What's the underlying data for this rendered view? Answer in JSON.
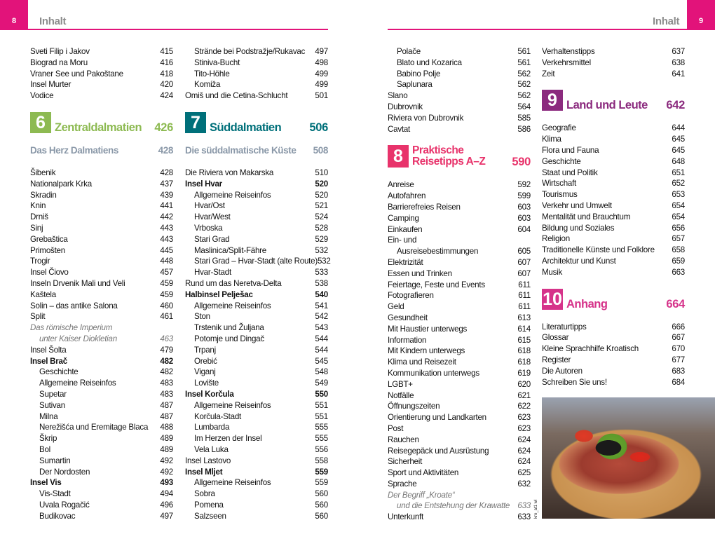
{
  "colors": {
    "brand": "#e2137a",
    "ch6": "#8dba52",
    "ch7": "#00707a",
    "ch8": "#e8336b",
    "ch9": "#8b2a7e",
    "ch10": "#d6338a"
  },
  "left_page": {
    "page_number": "8",
    "running_head": "Inhalt"
  },
  "right_page": {
    "page_number": "9",
    "running_head": "Inhalt"
  },
  "columns": [
    [
      {
        "t": "Sveti Filip i Jakov",
        "p": "415"
      },
      {
        "t": "Biograd na Moru",
        "p": "416"
      },
      {
        "t": "Vraner See und Pakoštane",
        "p": "418"
      },
      {
        "t": "Insel Murter",
        "p": "420"
      },
      {
        "t": "Vodice",
        "p": "424"
      },
      {
        "kind": "section",
        "num": "6",
        "title": "Zentraldalmatien",
        "p": "426",
        "color": "#8dba52"
      },
      {
        "kind": "sub",
        "t": "Das Herz Dalmatiens",
        "p": "428"
      },
      {
        "t": "Šibenik",
        "p": "428"
      },
      {
        "t": "Nationalpark Krka",
        "p": "437"
      },
      {
        "t": "Skradin",
        "p": "439"
      },
      {
        "t": "Knin",
        "p": "441"
      },
      {
        "t": "Drniš",
        "p": "442"
      },
      {
        "t": "Sinj",
        "p": "443"
      },
      {
        "t": "Grebaštica",
        "p": "443"
      },
      {
        "t": "Primošten",
        "p": "445"
      },
      {
        "t": "Trogir",
        "p": "448"
      },
      {
        "t": "Insel Čiovo",
        "p": "457"
      },
      {
        "t": "Inseln Drvenik Mali und Veli",
        "p": "459"
      },
      {
        "t": "Kaštela",
        "p": "459"
      },
      {
        "t": "Solin – das antike Salona",
        "p": "460"
      },
      {
        "t": "Split",
        "p": "461"
      },
      {
        "t": "Das römische Imperium",
        "p": "",
        "kind": "italic"
      },
      {
        "t": "unter Kaiser Diokletian",
        "p": "463",
        "kind": "italic indent"
      },
      {
        "t": "Insel Šolta",
        "p": "479"
      },
      {
        "t": "Insel Brač",
        "p": "482",
        "kind": "bold"
      },
      {
        "t": "Geschichte",
        "p": "482",
        "kind": "indent"
      },
      {
        "t": "Allgemeine Reiseinfos",
        "p": "483",
        "kind": "indent"
      },
      {
        "t": "Supetar",
        "p": "483",
        "kind": "indent"
      },
      {
        "t": "Sutivan",
        "p": "487",
        "kind": "indent"
      },
      {
        "t": "Milna",
        "p": "487",
        "kind": "indent"
      },
      {
        "t": "Nerežišća und Eremitage Blaca",
        "p": "488",
        "kind": "indent"
      },
      {
        "t": "Škrip",
        "p": "489",
        "kind": "indent"
      },
      {
        "t": "Bol",
        "p": "489",
        "kind": "indent"
      },
      {
        "t": "Sumartin",
        "p": "492",
        "kind": "indent"
      },
      {
        "t": "Der Nordosten",
        "p": "492",
        "kind": "indent"
      },
      {
        "t": "Insel Vis",
        "p": "493",
        "kind": "bold"
      },
      {
        "t": "Vis-Stadt",
        "p": "494",
        "kind": "indent"
      },
      {
        "t": "Uvala Rogačić",
        "p": "496",
        "kind": "indent"
      },
      {
        "t": "Budikovac",
        "p": "497",
        "kind": "indent"
      }
    ],
    [
      {
        "t": "Strände bei Podstražje/Rukavac",
        "p": "497",
        "kind": "indent"
      },
      {
        "t": "Stiniva-Bucht",
        "p": "498",
        "kind": "indent"
      },
      {
        "t": "Tito-Höhle",
        "p": "499",
        "kind": "indent"
      },
      {
        "t": "Komiža",
        "p": "499",
        "kind": "indent"
      },
      {
        "t": "Omiš und die Cetina-Schlucht",
        "p": "501"
      },
      {
        "kind": "section",
        "num": "7",
        "title": "Süddalmatien",
        "p": "506",
        "color": "#00707a"
      },
      {
        "kind": "sub",
        "t": "Die süddalmatische Küste",
        "p": "508"
      },
      {
        "t": "Die Riviera von Makarska",
        "p": "510"
      },
      {
        "t": "Insel Hvar",
        "p": "520",
        "kind": "bold"
      },
      {
        "t": "Allgemeine Reiseinfos",
        "p": "520",
        "kind": "indent"
      },
      {
        "t": "Hvar/Ost",
        "p": "521",
        "kind": "indent"
      },
      {
        "t": "Hvar/West",
        "p": "524",
        "kind": "indent"
      },
      {
        "t": "Vrboska",
        "p": "528",
        "kind": "indent"
      },
      {
        "t": "Stari Grad",
        "p": "529",
        "kind": "indent"
      },
      {
        "t": "Maslinica/Split-Fähre",
        "p": "532",
        "kind": "indent"
      },
      {
        "t": "Stari Grad – Hvar-Stadt (alte Route)",
        "p": "532",
        "kind": "indent"
      },
      {
        "t": "Hvar-Stadt",
        "p": "533",
        "kind": "indent"
      },
      {
        "t": "Rund um das Neretva-Delta",
        "p": "538"
      },
      {
        "t": "Halbinsel Pelješac",
        "p": "540",
        "kind": "bold"
      },
      {
        "t": "Allgemeine Reiseinfos",
        "p": "541",
        "kind": "indent"
      },
      {
        "t": "Ston",
        "p": "542",
        "kind": "indent"
      },
      {
        "t": "Trstenik und Žuljana",
        "p": "543",
        "kind": "indent"
      },
      {
        "t": "Potomje und Dingač",
        "p": "544",
        "kind": "indent"
      },
      {
        "t": "Trpanj",
        "p": "544",
        "kind": "indent"
      },
      {
        "t": "Orebić",
        "p": "545",
        "kind": "indent"
      },
      {
        "t": "Viganj",
        "p": "548",
        "kind": "indent"
      },
      {
        "t": "Lovište",
        "p": "549",
        "kind": "indent"
      },
      {
        "t": "Insel Korčula",
        "p": "550",
        "kind": "bold"
      },
      {
        "t": "Allgemeine Reiseinfos",
        "p": "551",
        "kind": "indent"
      },
      {
        "t": "Korčula-Stadt",
        "p": "551",
        "kind": "indent"
      },
      {
        "t": "Lumbarda",
        "p": "555",
        "kind": "indent"
      },
      {
        "t": "Im Herzen der Insel",
        "p": "555",
        "kind": "indent"
      },
      {
        "t": "Vela Luka",
        "p": "556",
        "kind": "indent"
      },
      {
        "t": "Insel Lastovo",
        "p": "558"
      },
      {
        "t": "Insel Mljet",
        "p": "559",
        "kind": "bold"
      },
      {
        "t": "Allgemeine Reiseinfos",
        "p": "559",
        "kind": "indent"
      },
      {
        "t": "Sobra",
        "p": "560",
        "kind": "indent"
      },
      {
        "t": "Pomena",
        "p": "560",
        "kind": "indent"
      },
      {
        "t": "Salzseen",
        "p": "560",
        "kind": "indent"
      }
    ],
    [
      {
        "t": "Polače",
        "p": "561",
        "kind": "indent"
      },
      {
        "t": "Blato und Kozarica",
        "p": "561",
        "kind": "indent"
      },
      {
        "t": "Babino Polje",
        "p": "562",
        "kind": "indent"
      },
      {
        "t": "Saplunara",
        "p": "562",
        "kind": "indent"
      },
      {
        "t": "Slano",
        "p": "562"
      },
      {
        "t": "Dubrovnik",
        "p": "564"
      },
      {
        "t": "Riviera von Dubrovnik",
        "p": "585"
      },
      {
        "t": "Cavtat",
        "p": "586"
      },
      {
        "kind": "section",
        "num": "8",
        "title": "Praktische",
        "title2": "Reisetipps A–Z",
        "p": "590",
        "color": "#e8336b"
      },
      {
        "t": "Anreise",
        "p": "592"
      },
      {
        "t": "Autofahren",
        "p": "599"
      },
      {
        "t": "Barrierefreies Reisen",
        "p": "603"
      },
      {
        "t": "Camping",
        "p": "603"
      },
      {
        "t": "Einkaufen",
        "p": "604"
      },
      {
        "t": "Ein- und",
        "p": ""
      },
      {
        "t": "Ausreisebestimmungen",
        "p": "605",
        "kind": "indent"
      },
      {
        "t": "Elektrizität",
        "p": "607"
      },
      {
        "t": "Essen und Trinken",
        "p": "607"
      },
      {
        "t": "Feiertage, Feste und Events",
        "p": "611"
      },
      {
        "t": "Fotografieren",
        "p": "611"
      },
      {
        "t": "Geld",
        "p": "611"
      },
      {
        "t": "Gesundheit",
        "p": "613"
      },
      {
        "t": "Mit Haustier unterwegs",
        "p": "614"
      },
      {
        "t": "Information",
        "p": "615"
      },
      {
        "t": "Mit Kindern unterwegs",
        "p": "618"
      },
      {
        "t": "Klima und Reisezeit",
        "p": "618"
      },
      {
        "t": "Kommunikation unterwegs",
        "p": "619"
      },
      {
        "t": "LGBT+",
        "p": "620"
      },
      {
        "t": "Notfälle",
        "p": "621"
      },
      {
        "t": "Öffnungszeiten",
        "p": "622"
      },
      {
        "t": "Orientierung und Landkarten",
        "p": "623"
      },
      {
        "t": "Post",
        "p": "623"
      },
      {
        "t": "Rauchen",
        "p": "624"
      },
      {
        "t": "Reisegepäck und Ausrüstung",
        "p": "624"
      },
      {
        "t": "Sicherheit",
        "p": "624"
      },
      {
        "t": "Sport und Aktivitäten",
        "p": "625"
      },
      {
        "t": "Sprache",
        "p": "632"
      },
      {
        "t": "Der Begriff „Kroate“",
        "p": "",
        "kind": "italic"
      },
      {
        "t": "und die Entstehung der Krawatte",
        "p": "633",
        "kind": "italic indent"
      },
      {
        "t": "Unterkunft",
        "p": "633"
      }
    ],
    [
      {
        "t": "Verhaltenstipps",
        "p": "637"
      },
      {
        "t": "Verkehrsmittel",
        "p": "638"
      },
      {
        "t": "Zeit",
        "p": "641"
      },
      {
        "kind": "section",
        "num": "9",
        "title": "Land und Leute",
        "p": "642",
        "color": "#8b2a7e"
      },
      {
        "t": "Geografie",
        "p": "644"
      },
      {
        "t": "Klima",
        "p": "645"
      },
      {
        "t": "Flora und Fauna",
        "p": "645"
      },
      {
        "t": "Geschichte",
        "p": "648"
      },
      {
        "t": "Staat und Politik",
        "p": "651"
      },
      {
        "t": "Wirtschaft",
        "p": "652"
      },
      {
        "t": "Tourismus",
        "p": "653"
      },
      {
        "t": "Verkehr und Umwelt",
        "p": "654"
      },
      {
        "t": "Mentalität und Brauchtum",
        "p": "654"
      },
      {
        "t": "Bildung und Soziales",
        "p": "656"
      },
      {
        "t": "Religion",
        "p": "657"
      },
      {
        "t": "Traditionelle Künste und Folklore",
        "p": "658"
      },
      {
        "t": "Architektur und Kunst",
        "p": "659"
      },
      {
        "t": "Musik",
        "p": "663"
      },
      {
        "kind": "section",
        "num": "10",
        "title": "Anhang",
        "p": "664",
        "color": "#d6338a"
      },
      {
        "t": "Literaturtipps",
        "p": "666"
      },
      {
        "t": "Glossar",
        "p": "667"
      },
      {
        "t": "Kleine Sprachhilfe Kroatisch",
        "p": "670"
      },
      {
        "t": "Register",
        "p": "677"
      },
      {
        "t": "Die Autoren",
        "p": "683"
      },
      {
        "t": "Schreiben Sie uns!",
        "p": "684"
      }
    ]
  ],
  "photo": {
    "subject": "Croatian ham platter with olives and tomatoes",
    "credit": "kro_at1 wl"
  }
}
